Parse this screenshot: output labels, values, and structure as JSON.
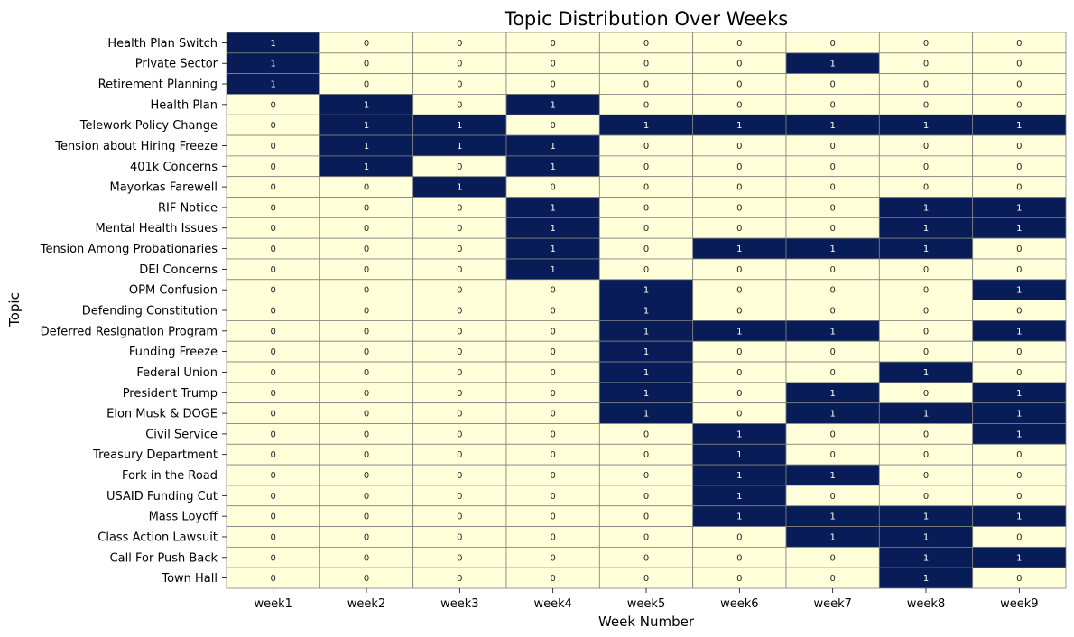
{
  "chart_data": {
    "type": "heatmap",
    "title": "Topic Distribution Over Weeks",
    "xlabel": "Week Number",
    "ylabel": "Topic",
    "x_categories": [
      "week1",
      "week2",
      "week3",
      "week4",
      "week5",
      "week6",
      "week7",
      "week8",
      "week9"
    ],
    "y_categories": [
      "Health Plan Switch",
      "Private Sector",
      "Retirement Planning",
      "Health Plan",
      "Telework Policy Change",
      "Tension about Hiring Freeze",
      "401k Concerns",
      "Mayorkas Farewell",
      "RIF Notice",
      "Mental Health Issues",
      "Tension Among Probationaries",
      "DEI Concerns",
      "OPM Confusion",
      "Defending Constitution",
      "Deferred Resignation Program",
      "Funding Freeze",
      "Federal Union",
      "President Trump",
      "Elon Musk & DOGE",
      "Civil Service",
      "Treasury Department",
      "Fork in the Road",
      "USAID Funding Cut",
      "Mass Loyoff",
      "Class Action Lawsuit",
      "Call For Push Back",
      "Town Hall"
    ],
    "values": [
      [
        1,
        0,
        0,
        0,
        0,
        0,
        0,
        0,
        0
      ],
      [
        1,
        0,
        0,
        0,
        0,
        0,
        1,
        0,
        0
      ],
      [
        1,
        0,
        0,
        0,
        0,
        0,
        0,
        0,
        0
      ],
      [
        0,
        1,
        0,
        1,
        0,
        0,
        0,
        0,
        0
      ],
      [
        0,
        1,
        1,
        0,
        1,
        1,
        1,
        1,
        1
      ],
      [
        0,
        1,
        1,
        1,
        0,
        0,
        0,
        0,
        0
      ],
      [
        0,
        1,
        0,
        1,
        0,
        0,
        0,
        0,
        0
      ],
      [
        0,
        0,
        1,
        0,
        0,
        0,
        0,
        0,
        0
      ],
      [
        0,
        0,
        0,
        1,
        0,
        0,
        0,
        1,
        1
      ],
      [
        0,
        0,
        0,
        1,
        0,
        0,
        0,
        1,
        1
      ],
      [
        0,
        0,
        0,
        1,
        0,
        1,
        1,
        1,
        0
      ],
      [
        0,
        0,
        0,
        1,
        0,
        0,
        0,
        0,
        0
      ],
      [
        0,
        0,
        0,
        0,
        1,
        0,
        0,
        0,
        1
      ],
      [
        0,
        0,
        0,
        0,
        1,
        0,
        0,
        0,
        0
      ],
      [
        0,
        0,
        0,
        0,
        1,
        1,
        1,
        0,
        1
      ],
      [
        0,
        0,
        0,
        0,
        1,
        0,
        0,
        0,
        0
      ],
      [
        0,
        0,
        0,
        0,
        1,
        0,
        0,
        1,
        0
      ],
      [
        0,
        0,
        0,
        0,
        1,
        0,
        1,
        0,
        1
      ],
      [
        0,
        0,
        0,
        0,
        1,
        0,
        1,
        1,
        1
      ],
      [
        0,
        0,
        0,
        0,
        0,
        1,
        0,
        0,
        1
      ],
      [
        0,
        0,
        0,
        0,
        0,
        1,
        0,
        0,
        0
      ],
      [
        0,
        0,
        0,
        0,
        0,
        1,
        1,
        0,
        0
      ],
      [
        0,
        0,
        0,
        0,
        0,
        1,
        0,
        0,
        0
      ],
      [
        0,
        0,
        0,
        0,
        0,
        1,
        1,
        1,
        1
      ],
      [
        0,
        0,
        0,
        0,
        0,
        0,
        1,
        1,
        0
      ],
      [
        0,
        0,
        0,
        0,
        0,
        0,
        0,
        1,
        1
      ],
      [
        0,
        0,
        0,
        0,
        0,
        0,
        0,
        1,
        0
      ]
    ],
    "value_range": [
      0,
      1
    ],
    "colors": {
      "low": "#ffffd9",
      "high": "#081d58",
      "cell_border": "#808080",
      "label_on_low": "#262626",
      "label_on_high": "#ffffff"
    },
    "annotations": true,
    "colorbar": false,
    "grid": false
  }
}
